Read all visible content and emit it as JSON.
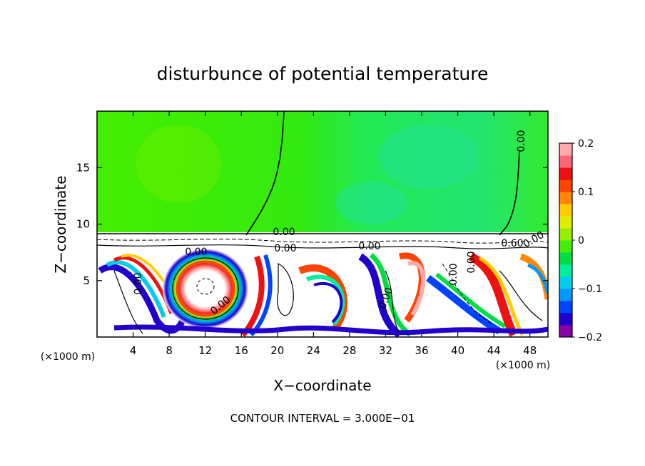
{
  "chart_data": {
    "type": "heatmap",
    "title": "disturbunce of potential temperature",
    "xlabel": "X−coordinate",
    "ylabel": "Z−coordinate",
    "x_unit_left": "(×1000 m)",
    "x_unit_right": "(×1000 m)",
    "xlim": [
      0,
      50
    ],
    "ylim": [
      0,
      20
    ],
    "x_ticks": [
      4,
      8,
      12,
      16,
      20,
      24,
      28,
      32,
      36,
      40,
      44,
      48
    ],
    "y_ticks": [
      5,
      10,
      15
    ],
    "colorbar": {
      "range": [
        -0.2,
        0.2
      ],
      "ticks": [
        0.2,
        0.1,
        0,
        -0.1,
        -0.2
      ],
      "tick_labels": [
        "0.2",
        "0.1",
        "0",
        "−0.1",
        "−0.2"
      ],
      "colors": [
        "#8800aa",
        "#2200cc",
        "#0044ff",
        "#0099ff",
        "#00ccee",
        "#00ee99",
        "#00dd44",
        "#44ee00",
        "#99ee00",
        "#ddee00",
        "#ffcc00",
        "#ff8800",
        "#ff4400",
        "#ee1111",
        "#ff6677",
        "#ffaaaa"
      ]
    },
    "contour_labels": [
      "0.00",
      "0.00",
      "0.00",
      "0.00",
      "0.00",
      "0.00",
      "0.00",
      "0.00",
      "0.00",
      "0.00",
      "0.60",
      "0.00"
    ],
    "footer": "CONTOUR INTERVAL = 3.000E−01",
    "grid": false
  }
}
